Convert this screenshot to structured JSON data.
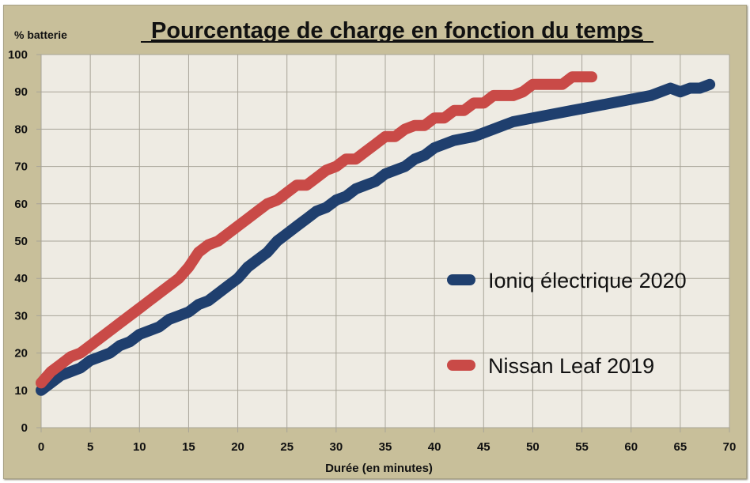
{
  "chart_data": {
    "type": "line",
    "title": "Pourcentage de charge en fonction du temps",
    "xlabel": "Durée (en minutes)",
    "ylabel": "% batterie",
    "xlim": [
      0,
      70
    ],
    "ylim": [
      0,
      100
    ],
    "x_ticks": [
      "0",
      "5",
      "10",
      "15",
      "20",
      "25",
      "30",
      "35",
      "40",
      "45",
      "50",
      "55",
      "60",
      "65",
      "70"
    ],
    "y_ticks": [
      "0",
      "10",
      "20",
      "30",
      "40",
      "50",
      "60",
      "70",
      "80",
      "90",
      "100"
    ],
    "grid": true,
    "legend_position": "right",
    "series": [
      {
        "name": "Ioniq électrique 2020",
        "color": "#1f3f6e",
        "x": [
          0,
          2,
          4,
          5,
          6,
          7,
          8,
          9,
          10,
          11,
          12,
          13,
          14,
          15,
          16,
          17,
          18,
          19,
          20,
          21,
          22,
          23,
          24,
          25,
          26,
          27,
          28,
          29,
          30,
          31,
          32,
          33,
          34,
          35,
          36,
          37,
          38,
          39,
          40,
          42,
          44,
          46,
          48,
          50,
          52,
          54,
          56,
          58,
          60,
          62,
          64,
          65,
          66,
          67,
          68
        ],
        "y": [
          10,
          14,
          16,
          18,
          19,
          20,
          22,
          23,
          25,
          26,
          27,
          29,
          30,
          31,
          33,
          34,
          36,
          38,
          40,
          43,
          45,
          47,
          50,
          52,
          54,
          56,
          58,
          59,
          61,
          62,
          64,
          65,
          66,
          68,
          69,
          70,
          72,
          73,
          75,
          77,
          78,
          80,
          82,
          83,
          84,
          85,
          86,
          87,
          88,
          89,
          91,
          90,
          91,
          91,
          92
        ]
      },
      {
        "name": "Nissan Leaf 2019",
        "color": "#c94a47",
        "x": [
          0,
          1,
          2,
          3,
          4,
          5,
          6,
          7,
          8,
          9,
          10,
          11,
          12,
          13,
          14,
          15,
          16,
          17,
          18,
          19,
          20,
          21,
          22,
          23,
          24,
          25,
          26,
          27,
          28,
          29,
          30,
          31,
          32,
          33,
          34,
          35,
          36,
          37,
          38,
          39,
          40,
          41,
          42,
          43,
          44,
          45,
          46,
          47,
          48,
          49,
          50,
          51,
          52,
          53,
          54,
          55,
          56
        ],
        "y": [
          12,
          15,
          17,
          19,
          20,
          22,
          24,
          26,
          28,
          30,
          32,
          34,
          36,
          38,
          40,
          43,
          47,
          49,
          50,
          52,
          54,
          56,
          58,
          60,
          61,
          63,
          65,
          65,
          67,
          69,
          70,
          72,
          72,
          74,
          76,
          78,
          78,
          80,
          81,
          81,
          83,
          83,
          85,
          85,
          87,
          87,
          89,
          89,
          89,
          90,
          92,
          92,
          92,
          92,
          94,
          94,
          94
        ]
      }
    ]
  }
}
